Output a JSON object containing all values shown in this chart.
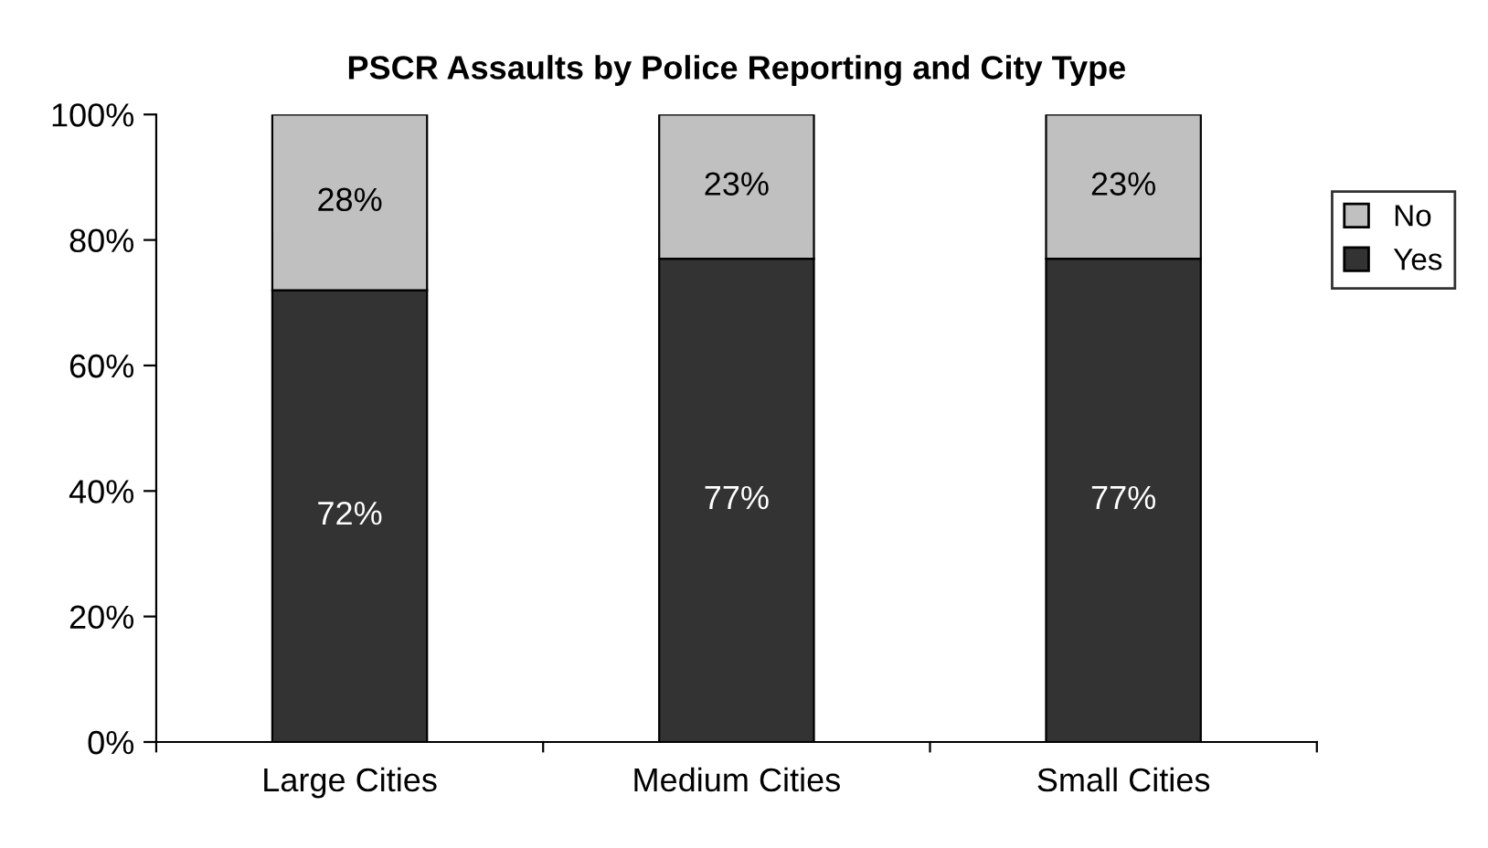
{
  "chart_data": {
    "type": "bar",
    "title": "PSCR Assaults by Police Reporting and City Type",
    "categories": [
      "Large Cities",
      "Medium Cities",
      "Small Cities"
    ],
    "stacked": true,
    "series": [
      {
        "name": "Yes",
        "color": "#333333",
        "values": [
          72,
          77,
          77
        ],
        "value_labels": [
          "72%",
          "77%",
          "77%"
        ]
      },
      {
        "name": "No",
        "color": "#c0c0c0",
        "values": [
          28,
          23,
          23
        ],
        "value_labels": [
          "28%",
          "23%",
          "23%"
        ]
      }
    ],
    "ylim": [
      0,
      100
    ],
    "yticks": [
      {
        "value": 0,
        "label": "0%"
      },
      {
        "value": 20,
        "label": "20%"
      },
      {
        "value": 40,
        "label": "40%"
      },
      {
        "value": 60,
        "label": "60%"
      },
      {
        "value": 80,
        "label": "80%"
      },
      {
        "value": 100,
        "label": "100%"
      }
    ],
    "grid": false,
    "legend": "right"
  }
}
